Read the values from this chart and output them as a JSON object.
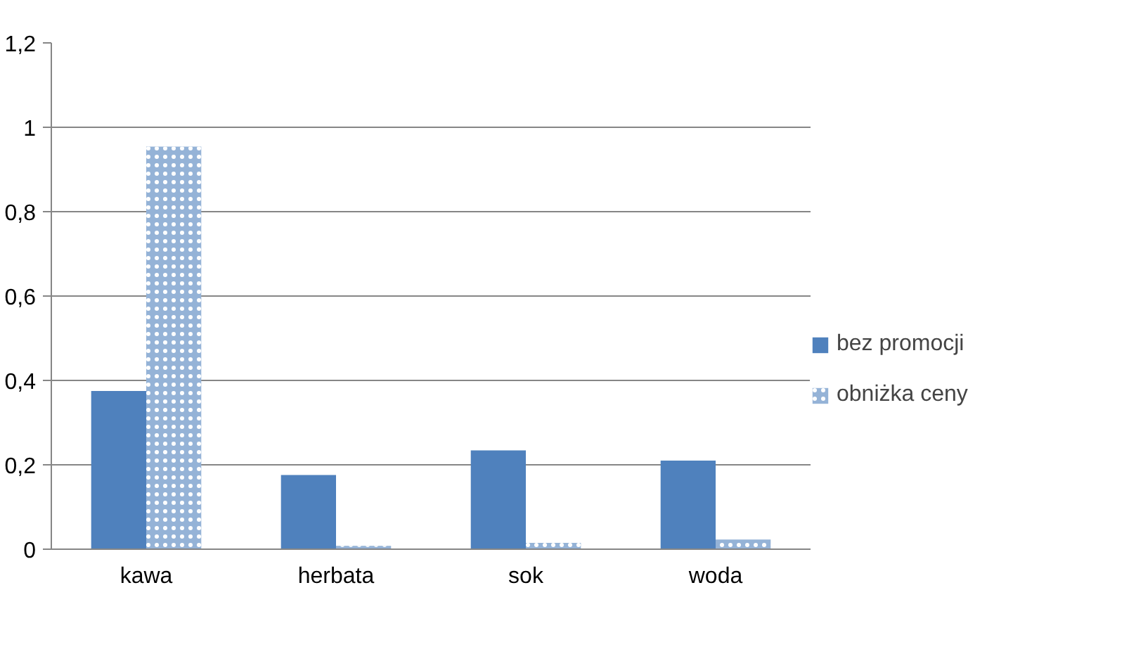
{
  "chart_data": {
    "type": "bar",
    "categories": [
      "kawa",
      "herbata",
      "sok",
      "woda"
    ],
    "series": [
      {
        "name": "bez promocji",
        "color": "#4f81bd",
        "values": [
          0.375,
          0.176,
          0.234,
          0.21
        ]
      },
      {
        "name": "obniżka ceny",
        "color": "#95b3d7",
        "values": [
          0.954,
          0.008,
          0.015,
          0.023
        ]
      }
    ],
    "ylim": [
      0,
      1.2
    ],
    "yticks": [
      {
        "value": 0,
        "label": "0"
      },
      {
        "value": 0.2,
        "label": "0,2"
      },
      {
        "value": 0.4,
        "label": "0,4"
      },
      {
        "value": 0.6,
        "label": "0,6"
      },
      {
        "value": 0.8,
        "label": "0,8"
      },
      {
        "value": 1,
        "label": "1"
      },
      {
        "value": 1.2,
        "label": "1,2"
      }
    ],
    "grid": "y",
    "legend": "right"
  }
}
